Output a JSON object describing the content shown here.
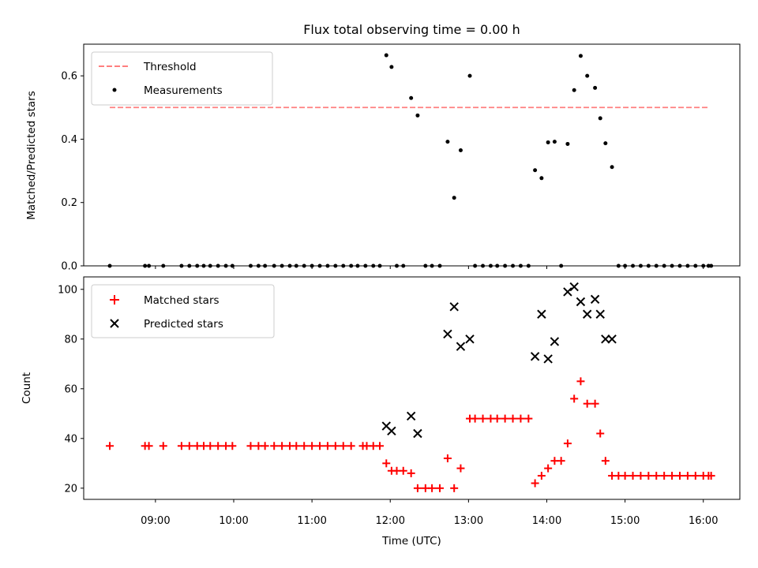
{
  "chart_data": {
    "title": "Flux total observing time = 0.00 h",
    "xlabel": "Time (UTC)",
    "xlim": [
      "08:05",
      "16:28"
    ],
    "x_ticks": [
      "09:00",
      "10:00",
      "11:00",
      "12:00",
      "13:00",
      "14:00",
      "15:00",
      "16:00"
    ],
    "panels": [
      {
        "type": "scatter",
        "ylabel": "Matched/Predicted stars",
        "ylim": [
          0,
          0.7
        ],
        "y_ticks": [
          "0.0",
          "0.2",
          "0.4",
          "0.6"
        ],
        "legend": {
          "position": "top-left",
          "entries": [
            "Threshold",
            "Measurements"
          ]
        },
        "threshold": {
          "name": "Threshold",
          "y": 0.5,
          "x_start": "08:25",
          "x_end": "16:05",
          "color": "#ff7f7f"
        },
        "series": [
          {
            "name": "Measurements",
            "color": "#000000",
            "points": [
              [
                "08:25",
                0
              ],
              [
                "08:52",
                0
              ],
              [
                "08:55",
                0
              ],
              [
                "09:06",
                0
              ],
              [
                "09:20",
                0
              ],
              [
                "09:26",
                0
              ],
              [
                "09:32",
                0
              ],
              [
                "09:37",
                0
              ],
              [
                "09:42",
                0
              ],
              [
                "09:48",
                0
              ],
              [
                "09:54",
                0
              ],
              [
                "09:59",
                0
              ],
              [
                "10:13",
                0
              ],
              [
                "10:19",
                0
              ],
              [
                "10:24",
                0
              ],
              [
                "10:31",
                0
              ],
              [
                "10:37",
                0
              ],
              [
                "10:43",
                0
              ],
              [
                "10:48",
                0
              ],
              [
                "10:54",
                0
              ],
              [
                "11:00",
                0
              ],
              [
                "11:06",
                0
              ],
              [
                "11:12",
                0
              ],
              [
                "11:18",
                0
              ],
              [
                "11:24",
                0
              ],
              [
                "11:30",
                0
              ],
              [
                "11:35",
                0
              ],
              [
                "11:41",
                0
              ],
              [
                "11:47",
                0
              ],
              [
                "11:52",
                0
              ],
              [
                "11:57",
                0.665
              ],
              [
                "12:01",
                0.628
              ],
              [
                "12:05",
                0
              ],
              [
                "12:10",
                0
              ],
              [
                "12:16",
                0.53
              ],
              [
                "12:21",
                0.475
              ],
              [
                "12:27",
                0
              ],
              [
                "12:32",
                0
              ],
              [
                "12:38",
                0
              ],
              [
                "12:44",
                0.392
              ],
              [
                "12:49",
                0.215
              ],
              [
                "12:54",
                0.365
              ],
              [
                "13:01",
                0.6
              ],
              [
                "13:05",
                0
              ],
              [
                "13:11",
                0
              ],
              [
                "13:17",
                0
              ],
              [
                "13:22",
                0
              ],
              [
                "13:28",
                0
              ],
              [
                "13:34",
                0
              ],
              [
                "13:40",
                0
              ],
              [
                "13:46",
                0
              ],
              [
                "13:51",
                0.302
              ],
              [
                "13:56",
                0.277
              ],
              [
                "14:01",
                0.39
              ],
              [
                "14:06",
                0.392
              ],
              [
                "14:11",
                0
              ],
              [
                "14:16",
                0.385
              ],
              [
                "14:21",
                0.555
              ],
              [
                "14:26",
                0.663
              ],
              [
                "14:31",
                0.6
              ],
              [
                "14:37",
                0.562
              ],
              [
                "14:41",
                0.466
              ],
              [
                "14:45",
                0.387
              ],
              [
                "14:50",
                0.312
              ],
              [
                "14:55",
                0
              ],
              [
                "15:00",
                0
              ],
              [
                "15:06",
                0
              ],
              [
                "15:12",
                0
              ],
              [
                "15:18",
                0
              ],
              [
                "15:24",
                0
              ],
              [
                "15:30",
                0
              ],
              [
                "15:36",
                0
              ],
              [
                "15:42",
                0
              ],
              [
                "15:48",
                0
              ],
              [
                "15:54",
                0
              ],
              [
                "16:00",
                0
              ],
              [
                "16:04",
                0
              ],
              [
                "16:06",
                0
              ]
            ]
          }
        ]
      },
      {
        "type": "scatter",
        "ylabel": "Count",
        "ylim": [
          15.5,
          105
        ],
        "y_ticks": [
          "20",
          "40",
          "60",
          "80",
          "100"
        ],
        "legend": {
          "position": "top-left",
          "entries": [
            "Matched stars",
            "Predicted stars"
          ]
        },
        "series": [
          {
            "name": "Matched stars",
            "marker": "+",
            "color": "#ff0000",
            "points": [
              [
                "08:25",
                37
              ],
              [
                "08:52",
                37
              ],
              [
                "08:55",
                37
              ],
              [
                "09:06",
                37
              ],
              [
                "09:20",
                37
              ],
              [
                "09:26",
                37
              ],
              [
                "09:32",
                37
              ],
              [
                "09:37",
                37
              ],
              [
                "09:42",
                37
              ],
              [
                "09:48",
                37
              ],
              [
                "09:54",
                37
              ],
              [
                "09:59",
                37
              ],
              [
                "10:13",
                37
              ],
              [
                "10:19",
                37
              ],
              [
                "10:24",
                37
              ],
              [
                "10:31",
                37
              ],
              [
                "10:37",
                37
              ],
              [
                "10:43",
                37
              ],
              [
                "10:48",
                37
              ],
              [
                "10:54",
                37
              ],
              [
                "11:00",
                37
              ],
              [
                "11:06",
                37
              ],
              [
                "11:12",
                37
              ],
              [
                "11:18",
                37
              ],
              [
                "11:24",
                37
              ],
              [
                "11:30",
                37
              ],
              [
                "11:39",
                37
              ],
              [
                "11:42",
                37
              ],
              [
                "11:47",
                37
              ],
              [
                "11:52",
                37
              ],
              [
                "11:57",
                30
              ],
              [
                "12:01",
                27
              ],
              [
                "12:05",
                27
              ],
              [
                "12:10",
                27
              ],
              [
                "12:16",
                26
              ],
              [
                "12:21",
                20
              ],
              [
                "12:27",
                20
              ],
              [
                "12:32",
                20
              ],
              [
                "12:38",
                20
              ],
              [
                "12:44",
                32
              ],
              [
                "12:49",
                20
              ],
              [
                "12:54",
                28
              ],
              [
                "13:01",
                48
              ],
              [
                "13:05",
                48
              ],
              [
                "13:11",
                48
              ],
              [
                "13:17",
                48
              ],
              [
                "13:22",
                48
              ],
              [
                "13:28",
                48
              ],
              [
                "13:34",
                48
              ],
              [
                "13:40",
                48
              ],
              [
                "13:46",
                48
              ],
              [
                "13:51",
                22
              ],
              [
                "13:56",
                25
              ],
              [
                "14:01",
                28
              ],
              [
                "14:06",
                31
              ],
              [
                "14:11",
                31
              ],
              [
                "14:16",
                38
              ],
              [
                "14:21",
                56
              ],
              [
                "14:26",
                63
              ],
              [
                "14:31",
                54
              ],
              [
                "14:37",
                54
              ],
              [
                "14:41",
                42
              ],
              [
                "14:45",
                31
              ],
              [
                "14:50",
                25
              ],
              [
                "14:55",
                25
              ],
              [
                "15:00",
                25
              ],
              [
                "15:06",
                25
              ],
              [
                "15:12",
                25
              ],
              [
                "15:18",
                25
              ],
              [
                "15:24",
                25
              ],
              [
                "15:30",
                25
              ],
              [
                "15:36",
                25
              ],
              [
                "15:42",
                25
              ],
              [
                "15:48",
                25
              ],
              [
                "15:54",
                25
              ],
              [
                "16:00",
                25
              ],
              [
                "16:04",
                25
              ],
              [
                "16:06",
                25
              ]
            ]
          },
          {
            "name": "Predicted stars",
            "marker": "x",
            "color": "#000000",
            "points": [
              [
                "11:57",
                45
              ],
              [
                "12:01",
                43
              ],
              [
                "12:16",
                49
              ],
              [
                "12:21",
                42
              ],
              [
                "12:44",
                82
              ],
              [
                "12:49",
                93
              ],
              [
                "12:54",
                77
              ],
              [
                "13:01",
                80
              ],
              [
                "13:51",
                73
              ],
              [
                "13:56",
                90
              ],
              [
                "14:01",
                72
              ],
              [
                "14:06",
                79
              ],
              [
                "14:16",
                99
              ],
              [
                "14:21",
                101
              ],
              [
                "14:26",
                95
              ],
              [
                "14:31",
                90
              ],
              [
                "14:37",
                96
              ],
              [
                "14:41",
                90
              ],
              [
                "14:45",
                80
              ],
              [
                "14:50",
                80
              ]
            ]
          }
        ]
      }
    ]
  }
}
